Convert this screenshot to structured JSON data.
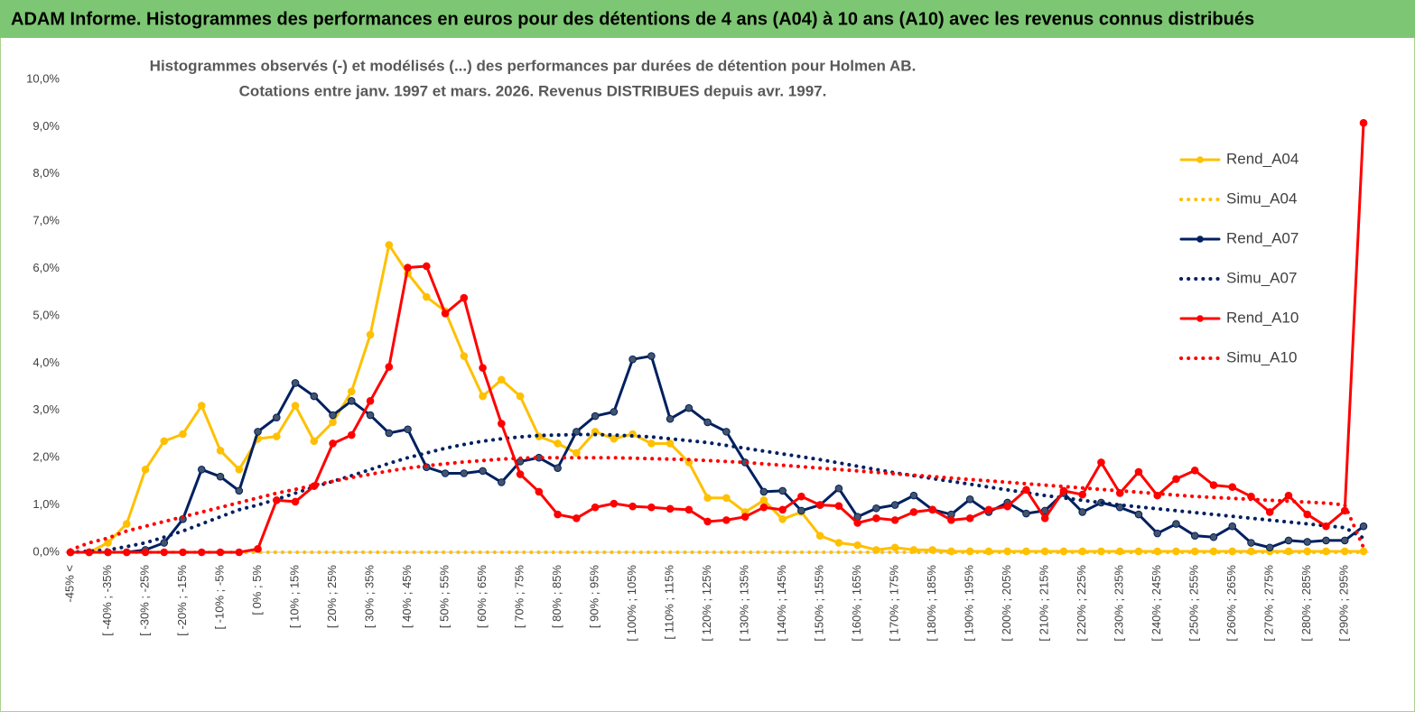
{
  "banner": "ADAM Informe. Histogrammes des performances en euros pour des détentions de 4 ans (A04) à 10 ans (A10) avec les revenus connus distribués",
  "chart_data": {
    "type": "line",
    "title": "Histogrammes observés (-) et modélisés (...) des performances par durées de détention pour Holmen AB.",
    "subtitle": "Cotations entre janv. 1997 et mars. 2026. Revenus DISTRIBUES depuis avr. 1997.",
    "categories": [
      "-45% <",
      null,
      "[ -40% ; -35%",
      null,
      "[ -30% ; -25%",
      null,
      "[ -20% ; -15%",
      null,
      "[ -10% ; -5%",
      null,
      "[ 0% ; 5%",
      null,
      "[ 10% ; 15%",
      null,
      "[ 20% ; 25%",
      null,
      "[ 30% ; 35%",
      null,
      "[ 40% ; 45%",
      null,
      "[ 50% ; 55%",
      null,
      "[ 60% ; 65%",
      null,
      "[ 70% ; 75%",
      null,
      "[ 80% ; 85%",
      null,
      "[ 90% ; 95%",
      null,
      "[ 100% ; 105%",
      null,
      "[ 110% ; 115%",
      null,
      "[ 120% ; 125%",
      null,
      "[ 130% ; 135%",
      null,
      "[ 140% ; 145%",
      null,
      "[ 150% ; 155%",
      null,
      "[ 160% ; 165%",
      null,
      "[ 170% ; 175%",
      null,
      "[ 180% ; 185%",
      null,
      "[ 190% ; 195%",
      null,
      "[ 200% ; 205%",
      null,
      "[ 210% ; 215%",
      null,
      "[ 220% ; 225%",
      null,
      "[ 230% ; 235%",
      null,
      "[ 240% ; 245%",
      null,
      "[ 250% ; 255%",
      null,
      "[ 260% ; 265%",
      null,
      "[ 270% ; 275%",
      null,
      "[ 280% ; 285%",
      null,
      "[ 290% ; 295%",
      null
    ],
    "series": [
      {
        "name": "Rend_A04",
        "color": "#ffc000",
        "style": "solid",
        "values": [
          0,
          0,
          0.2,
          0.6,
          1.75,
          2.35,
          2.5,
          3.1,
          2.15,
          1.75,
          2.4,
          2.45,
          3.1,
          2.35,
          2.75,
          3.4,
          4.6,
          6.5,
          5.9,
          5.4,
          5.1,
          4.15,
          3.3,
          3.65,
          3.3,
          2.45,
          2.3,
          2.1,
          2.55,
          2.4,
          2.5,
          2.3,
          2.3,
          1.9,
          1.15,
          1.15,
          0.85,
          1.1,
          0.7,
          0.85,
          0.35,
          0.2,
          0.15,
          0.05,
          0.1,
          0.05,
          0.05,
          0.02,
          0.02,
          0.02,
          0.02,
          0.02,
          0.02,
          0.02,
          0.02,
          0.02,
          0.02,
          0.02,
          0.02,
          0.02,
          0.02,
          0.02,
          0.02,
          0.02,
          0.02,
          0.02,
          0.02,
          0.02,
          0.02,
          0.02
        ]
      },
      {
        "name": "Simu_A04",
        "color": "#ffc000",
        "style": "dotted",
        "values": [
          0,
          0,
          0,
          0,
          0,
          0,
          0,
          0,
          0,
          0,
          0,
          0,
          0,
          0,
          0,
          0,
          0,
          0,
          0,
          0,
          0,
          0,
          0,
          0,
          0,
          0,
          0,
          0,
          0,
          0,
          0,
          0,
          0,
          0,
          0,
          0,
          0,
          0,
          0,
          0,
          0,
          0,
          0,
          0,
          0,
          0,
          0,
          0,
          0,
          0,
          0,
          0,
          0,
          0,
          0,
          0,
          0,
          0,
          0,
          0,
          0,
          0,
          0,
          0,
          0,
          0,
          0,
          0,
          0,
          0
        ]
      },
      {
        "name": "Rend_A07",
        "color": "#002060",
        "style": "solid",
        "values": [
          0,
          0,
          0,
          0,
          0.05,
          0.2,
          0.7,
          1.75,
          1.6,
          1.3,
          2.55,
          2.85,
          3.58,
          3.3,
          2.9,
          3.2,
          2.9,
          2.52,
          2.6,
          1.8,
          1.67,
          1.67,
          1.72,
          1.48,
          1.92,
          2.0,
          1.78,
          2.55,
          2.88,
          2.97,
          4.08,
          4.15,
          2.82,
          3.05,
          2.75,
          2.55,
          1.9,
          1.28,
          1.3,
          0.88,
          1.0,
          1.35,
          0.75,
          0.93,
          1.0,
          1.2,
          0.9,
          0.8,
          1.12,
          0.85,
          1.05,
          0.82,
          0.88,
          1.25,
          0.85,
          1.05,
          0.95,
          0.8,
          0.4,
          0.6,
          0.35,
          0.32,
          0.55,
          0.2,
          0.1,
          0.25,
          0.22,
          0.25,
          0.25,
          0.55
        ]
      },
      {
        "name": "Simu_A07",
        "color": "#002060",
        "style": "dotted",
        "values": [
          0,
          0.02,
          0.05,
          0.12,
          0.2,
          0.32,
          0.45,
          0.6,
          0.75,
          0.9,
          1.0,
          1.12,
          1.25,
          1.38,
          1.5,
          1.62,
          1.75,
          1.88,
          2.0,
          2.1,
          2.2,
          2.28,
          2.35,
          2.4,
          2.44,
          2.47,
          2.48,
          2.49,
          2.49,
          2.48,
          2.46,
          2.44,
          2.4,
          2.36,
          2.32,
          2.26,
          2.2,
          2.14,
          2.08,
          2.02,
          1.96,
          1.89,
          1.82,
          1.75,
          1.68,
          1.62,
          1.56,
          1.5,
          1.44,
          1.38,
          1.32,
          1.26,
          1.2,
          1.15,
          1.1,
          1.05,
          1.0,
          0.96,
          0.92,
          0.88,
          0.84,
          0.8,
          0.76,
          0.72,
          0.68,
          0.64,
          0.6,
          0.56,
          0.52,
          0.3
        ]
      },
      {
        "name": "Rend_A10",
        "color": "#ff0000",
        "style": "solid",
        "values": [
          0,
          0,
          0,
          0,
          0,
          0,
          0,
          0,
          0,
          0,
          0.07,
          1.1,
          1.07,
          1.4,
          2.3,
          2.48,
          3.2,
          3.92,
          6.02,
          6.05,
          5.05,
          5.38,
          3.9,
          2.72,
          1.65,
          1.28,
          0.8,
          0.72,
          0.95,
          1.03,
          0.97,
          0.95,
          0.92,
          0.9,
          0.65,
          0.68,
          0.75,
          0.95,
          0.9,
          1.18,
          1.0,
          0.98,
          0.62,
          0.72,
          0.68,
          0.85,
          0.9,
          0.68,
          0.72,
          0.9,
          0.97,
          1.32,
          0.72,
          1.3,
          1.22,
          1.9,
          1.25,
          1.7,
          1.2,
          1.55,
          1.73,
          1.42,
          1.38,
          1.18,
          0.85,
          1.2,
          0.8,
          0.55,
          0.88,
          9.08
        ]
      },
      {
        "name": "Simu_A10",
        "color": "#ff0000",
        "style": "dotted",
        "values": [
          0.05,
          0.2,
          0.3,
          0.45,
          0.55,
          0.65,
          0.75,
          0.85,
          0.95,
          1.05,
          1.15,
          1.25,
          1.33,
          1.42,
          1.5,
          1.58,
          1.65,
          1.72,
          1.78,
          1.83,
          1.87,
          1.91,
          1.94,
          1.97,
          1.99,
          2.0,
          2.0,
          2.0,
          2.0,
          2.0,
          1.99,
          1.98,
          1.97,
          1.96,
          1.94,
          1.92,
          1.9,
          1.87,
          1.84,
          1.81,
          1.78,
          1.75,
          1.72,
          1.69,
          1.66,
          1.63,
          1.6,
          1.57,
          1.54,
          1.51,
          1.48,
          1.45,
          1.42,
          1.39,
          1.36,
          1.33,
          1.3,
          1.27,
          1.24,
          1.21,
          1.18,
          1.16,
          1.14,
          1.12,
          1.1,
          1.08,
          1.06,
          1.04,
          1.0,
          0.1
        ]
      }
    ],
    "ylim": [
      0,
      10
    ],
    "yticks": [
      {
        "value": 0,
        "label": "0,0%"
      },
      {
        "value": 1,
        "label": "1,0%"
      },
      {
        "value": 2,
        "label": "2,0%"
      },
      {
        "value": 3,
        "label": "3,0%"
      },
      {
        "value": 4,
        "label": "4,0%"
      },
      {
        "value": 5,
        "label": "5,0%"
      },
      {
        "value": 6,
        "label": "6,0%"
      },
      {
        "value": 7,
        "label": "7,0%"
      },
      {
        "value": 8,
        "label": "8,0%"
      },
      {
        "value": 9,
        "label": "9,0%"
      },
      {
        "value": 10,
        "label": "10,0%"
      }
    ],
    "grid": false,
    "legend": "right"
  }
}
